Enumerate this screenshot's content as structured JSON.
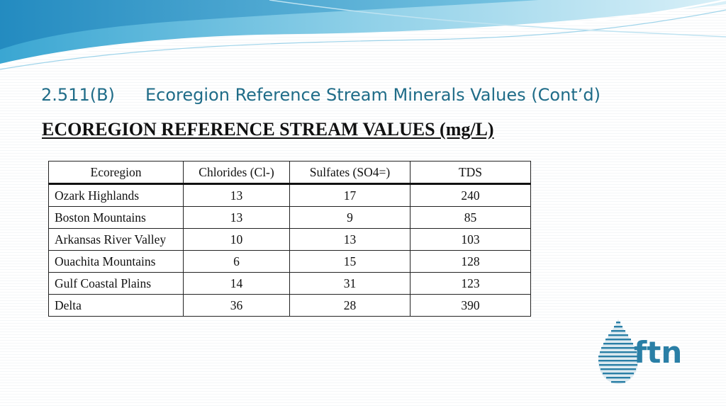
{
  "heading": {
    "code": "2.511(B)",
    "title": "Ecoregion Reference Stream Minerals Values (Cont’d)"
  },
  "subheading": "ECOREGION REFERENCE STREAM VALUES (mg/L)",
  "table": {
    "headers": [
      "Ecoregion",
      "Chlorides (Cl-)",
      "Sulfates (SO4=)",
      "TDS"
    ],
    "rows": [
      [
        "Ozark Highlands",
        "13",
        "17",
        "240"
      ],
      [
        "Boston Mountains",
        "13",
        "9",
        "85"
      ],
      [
        "Arkansas River Valley",
        "10",
        "13",
        "103"
      ],
      [
        "Ouachita Mountains",
        "6",
        "15",
        "128"
      ],
      [
        "Gulf Coastal Plains",
        "14",
        "31",
        "123"
      ],
      [
        "Delta",
        "36",
        "28",
        "390"
      ]
    ]
  },
  "logo": {
    "text": "ftn",
    "icon": "water-drop-icon",
    "color": "#2a7fa6"
  },
  "colors": {
    "heading": "#1f6c88",
    "wave_light": "#cde9f4",
    "wave_mid": "#7cc6e2",
    "wave_dark": "#2d95c5"
  }
}
